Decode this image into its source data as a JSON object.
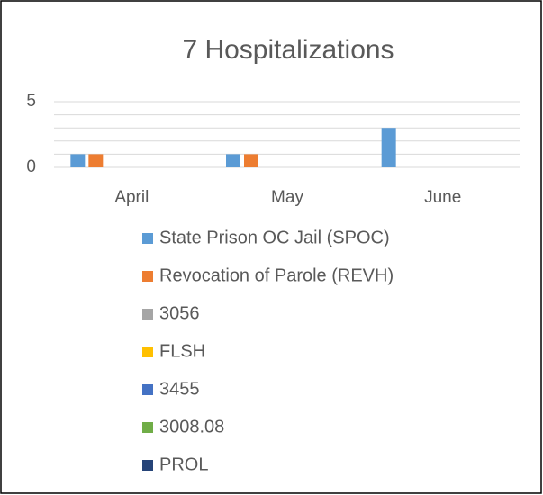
{
  "chart_data": {
    "type": "bar",
    "title": "7 Hospitalizations",
    "categories": [
      "April",
      "May",
      "June"
    ],
    "series": [
      {
        "name": "State Prison OC Jail (SPOC)",
        "color": "#5b9bd5",
        "values": [
          1,
          1,
          3
        ]
      },
      {
        "name": "Revocation of Parole (REVH)",
        "color": "#ed7d31",
        "values": [
          1,
          1,
          0
        ]
      },
      {
        "name": "3056",
        "color": "#a5a5a5",
        "values": [
          0,
          0,
          0
        ]
      },
      {
        "name": "FLSH",
        "color": "#ffc000",
        "values": [
          0,
          0,
          0
        ]
      },
      {
        "name": "3455",
        "color": "#4472c4",
        "values": [
          0,
          0,
          0
        ]
      },
      {
        "name": "3008.08",
        "color": "#70ad47",
        "values": [
          0,
          0,
          0
        ]
      },
      {
        "name": "PROL",
        "color": "#264478",
        "values": [
          0,
          0,
          0
        ]
      }
    ],
    "ylim": [
      0,
      5
    ],
    "yticks": [
      0,
      5
    ],
    "minor_yticks": [
      1,
      2,
      3,
      4
    ],
    "grid": true,
    "legend": "bottom"
  }
}
